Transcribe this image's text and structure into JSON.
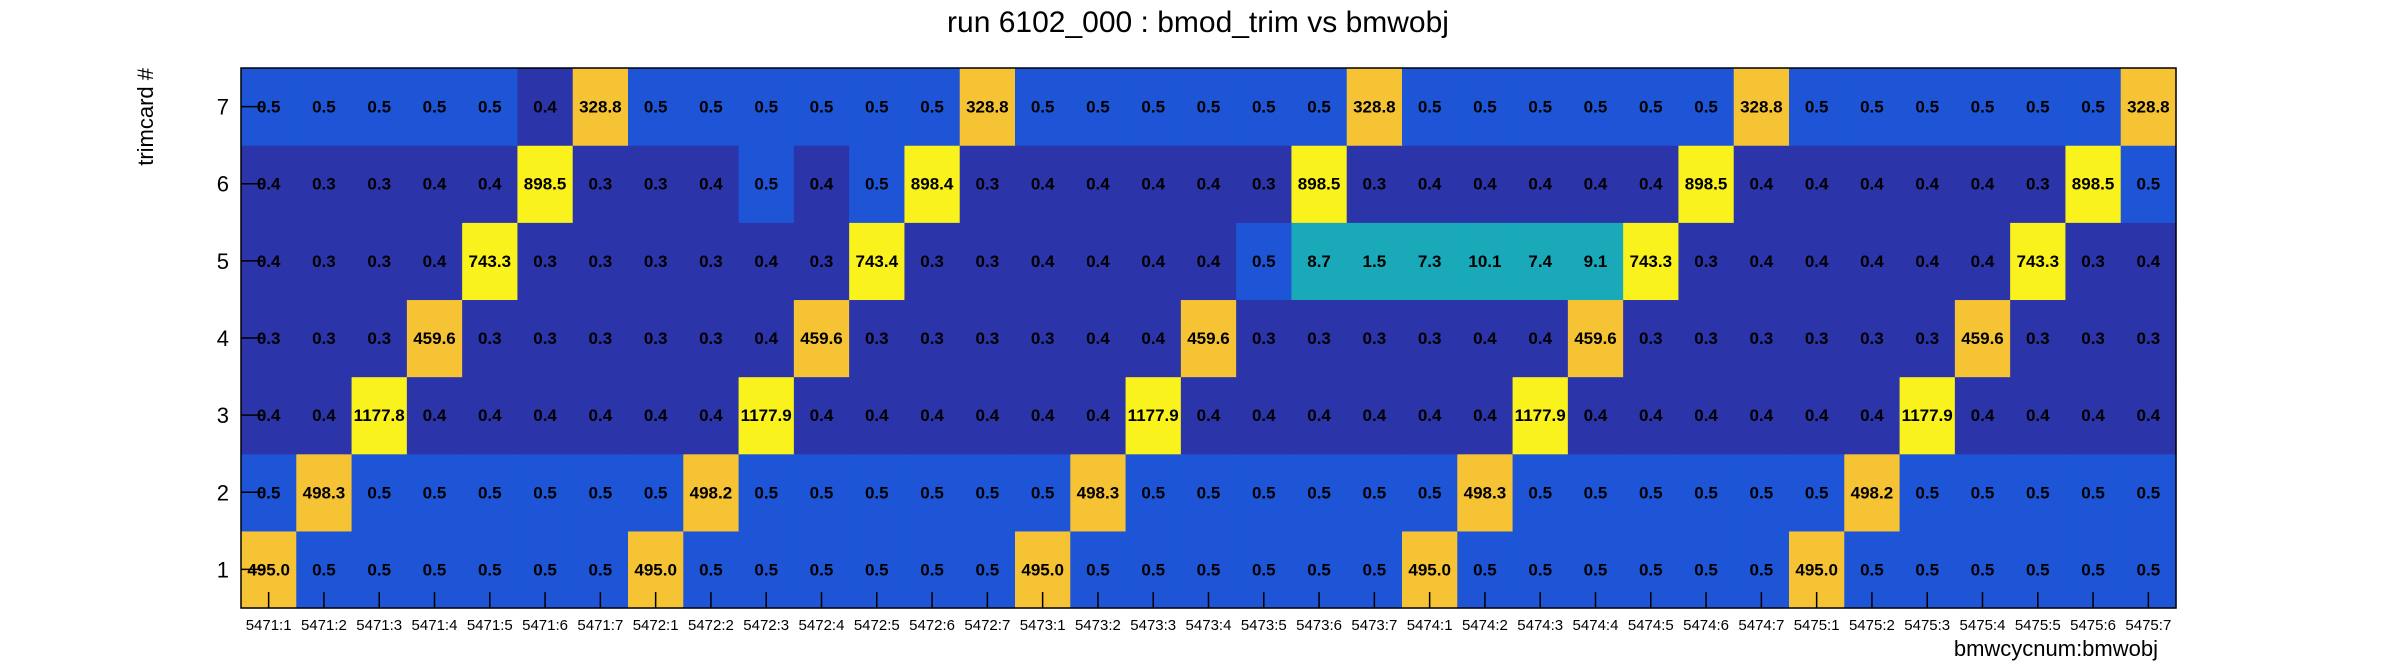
{
  "chart_data": {
    "type": "heatmap",
    "title": "run 6102_000 : bmod_trim vs bmwobj",
    "xlabel": "bmwcycnum:bmwobj",
    "ylabel": "trimcard #",
    "categories": [
      "5471:1",
      "5471:2",
      "5471:3",
      "5471:4",
      "5471:5",
      "5471:6",
      "5471:7",
      "5472:1",
      "5472:2",
      "5472:3",
      "5472:4",
      "5472:5",
      "5472:6",
      "5472:7",
      "5473:1",
      "5473:2",
      "5473:3",
      "5473:4",
      "5473:5",
      "5473:6",
      "5473:7",
      "5474:1",
      "5474:2",
      "5474:3",
      "5474:4",
      "5474:5",
      "5474:6",
      "5474:7",
      "5475:1",
      "5475:2",
      "5475:3",
      "5475:4",
      "5475:5",
      "5475:6",
      "5475:7"
    ],
    "y": [
      1,
      2,
      3,
      4,
      5,
      6,
      7
    ],
    "values": [
      [
        "495.0",
        "0.5",
        "0.5",
        "0.5",
        "0.5",
        "0.5",
        "0.5",
        "495.0",
        "0.5",
        "0.5",
        "0.5",
        "0.5",
        "0.5",
        "0.5",
        "495.0",
        "0.5",
        "0.5",
        "0.5",
        "0.5",
        "0.5",
        "0.5",
        "495.0",
        "0.5",
        "0.5",
        "0.5",
        "0.5",
        "0.5",
        "0.5",
        "495.0",
        "0.5",
        "0.5",
        "0.5",
        "0.5",
        "0.5",
        "0.5"
      ],
      [
        "0.5",
        "498.3",
        "0.5",
        "0.5",
        "0.5",
        "0.5",
        "0.5",
        "0.5",
        "498.2",
        "0.5",
        "0.5",
        "0.5",
        "0.5",
        "0.5",
        "0.5",
        "498.3",
        "0.5",
        "0.5",
        "0.5",
        "0.5",
        "0.5",
        "0.5",
        "498.3",
        "0.5",
        "0.5",
        "0.5",
        "0.5",
        "0.5",
        "0.5",
        "498.2",
        "0.5",
        "0.5",
        "0.5",
        "0.5",
        "0.5"
      ],
      [
        "0.4",
        "0.4",
        "1177.8",
        "0.4",
        "0.4",
        "0.4",
        "0.4",
        "0.4",
        "0.4",
        "1177.9",
        "0.4",
        "0.4",
        "0.4",
        "0.4",
        "0.4",
        "0.4",
        "1177.9",
        "0.4",
        "0.4",
        "0.4",
        "0.4",
        "0.4",
        "0.4",
        "1177.9",
        "0.4",
        "0.4",
        "0.4",
        "0.4",
        "0.4",
        "0.4",
        "1177.9",
        "0.4",
        "0.4",
        "0.4",
        "0.4"
      ],
      [
        "0.3",
        "0.3",
        "0.3",
        "459.6",
        "0.3",
        "0.3",
        "0.3",
        "0.3",
        "0.3",
        "0.4",
        "459.6",
        "0.3",
        "0.3",
        "0.3",
        "0.3",
        "0.4",
        "0.4",
        "459.6",
        "0.3",
        "0.3",
        "0.3",
        "0.3",
        "0.4",
        "0.4",
        "459.6",
        "0.3",
        "0.3",
        "0.3",
        "0.3",
        "0.3",
        "0.3",
        "459.6",
        "0.3",
        "0.3",
        "0.3"
      ],
      [
        "0.4",
        "0.3",
        "0.3",
        "0.4",
        "743.3",
        "0.3",
        "0.3",
        "0.3",
        "0.3",
        "0.4",
        "0.3",
        "743.4",
        "0.3",
        "0.3",
        "0.4",
        "0.4",
        "0.4",
        "0.4",
        "0.5",
        "8.7",
        "1.5",
        "7.3",
        "10.1",
        "7.4",
        "9.1",
        "743.3",
        "0.3",
        "0.4",
        "0.4",
        "0.4",
        "0.4",
        "0.4",
        "743.3",
        "0.3",
        "0.4"
      ],
      [
        "0.4",
        "0.3",
        "0.3",
        "0.4",
        "0.4",
        "898.5",
        "0.3",
        "0.3",
        "0.4",
        "0.5",
        "0.4",
        "0.5",
        "898.4",
        "0.3",
        "0.4",
        "0.4",
        "0.4",
        "0.4",
        "0.3",
        "898.5",
        "0.3",
        "0.4",
        "0.4",
        "0.4",
        "0.4",
        "0.4",
        "898.5",
        "0.4",
        "0.4",
        "0.4",
        "0.4",
        "0.4",
        "0.3",
        "898.5",
        "0.5"
      ],
      [
        "0.5",
        "0.5",
        "0.5",
        "0.5",
        "0.5",
        "0.4",
        "328.8",
        "0.5",
        "0.5",
        "0.5",
        "0.5",
        "0.5",
        "0.5",
        "328.8",
        "0.5",
        "0.5",
        "0.5",
        "0.5",
        "0.5",
        "0.5",
        "328.8",
        "0.5",
        "0.5",
        "0.5",
        "0.5",
        "0.5",
        "0.5",
        "328.8",
        "0.5",
        "0.5",
        "0.5",
        "0.5",
        "0.5",
        "0.5",
        "328.8"
      ]
    ],
    "colors": {
      "low": "#2b34a8",
      "mid_low": "#1d55d6",
      "mid": "#19a9b8",
      "high_mid": "#f5c334",
      "high": "#f9f21c"
    }
  }
}
